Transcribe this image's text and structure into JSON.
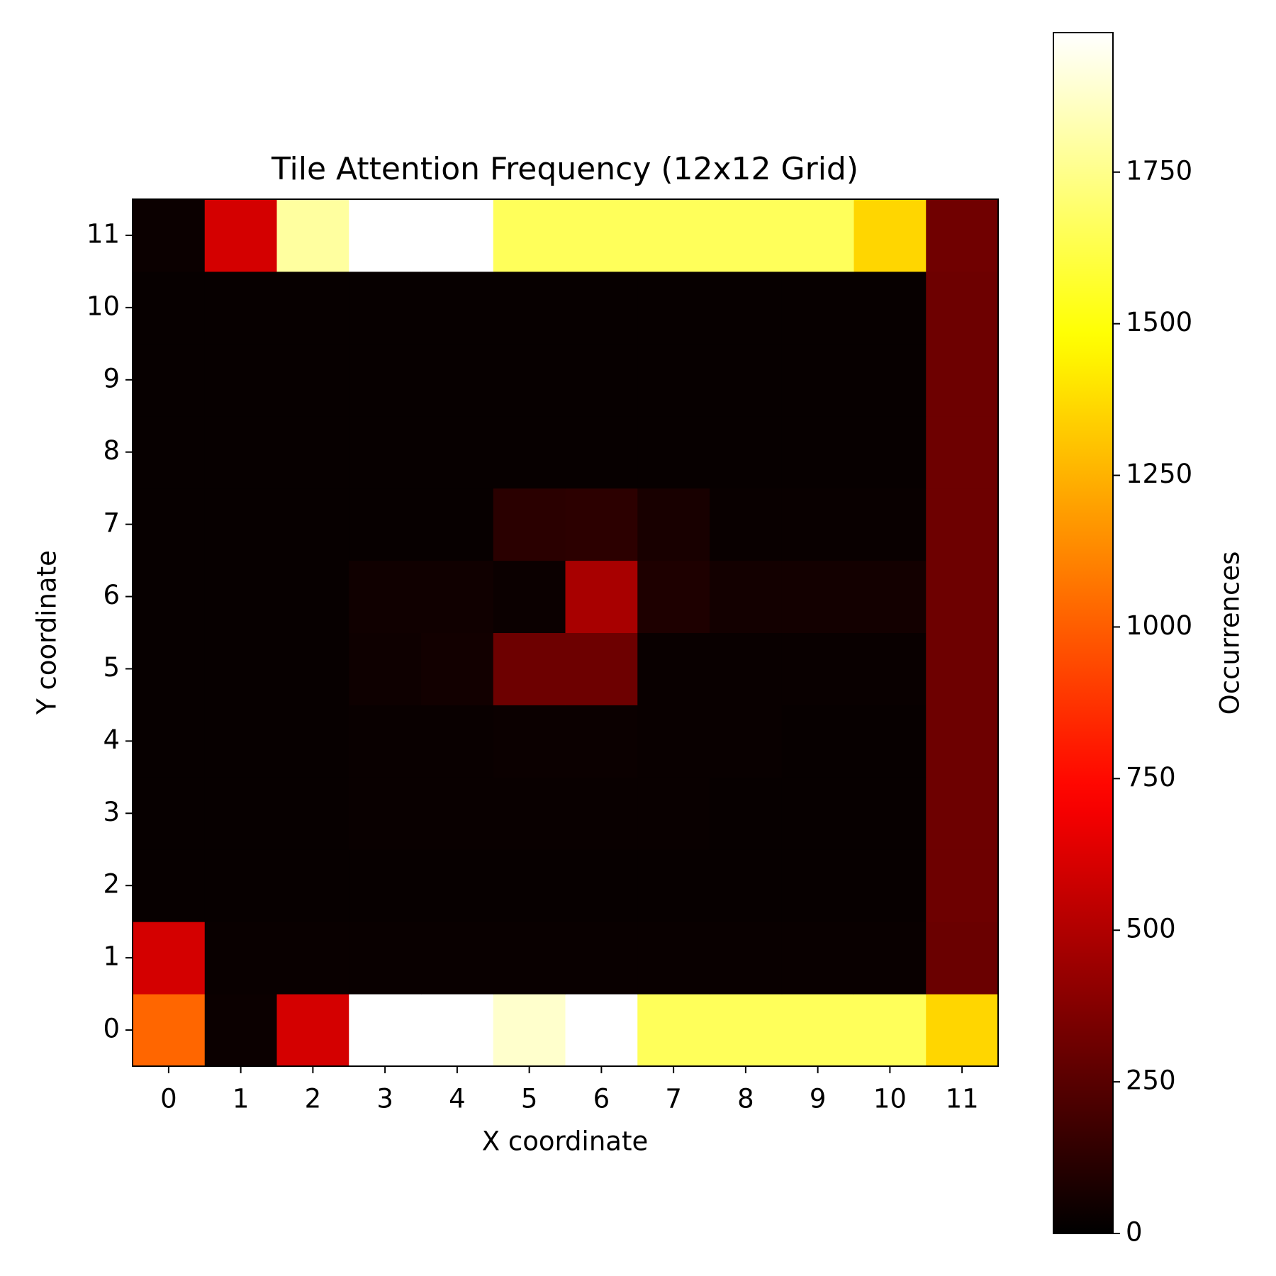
{
  "chart_data": {
    "type": "heatmap",
    "title": "Tile Attention Frequency (12x12 Grid)",
    "x_label": "X coordinate",
    "y_label": "Y coordinate",
    "colorbar_label": "Occurrences",
    "colormap": "hot",
    "xlim": [
      -0.5,
      11.5
    ],
    "ylim": [
      -0.5,
      11.5
    ],
    "xticks": [
      0,
      1,
      2,
      3,
      4,
      5,
      6,
      7,
      8,
      9,
      10,
      11
    ],
    "yticks": [
      0,
      1,
      2,
      3,
      4,
      5,
      6,
      7,
      8,
      9,
      10,
      11
    ],
    "clim": [
      0,
      1980
    ],
    "cticks": [
      0,
      250,
      500,
      750,
      1000,
      1250,
      1500,
      1750
    ],
    "values": [
      [
        1024,
        30,
        600,
        1980,
        1980,
        1880,
        1980,
        1655,
        1655,
        1655,
        1655,
        1356
      ],
      [
        600,
        25,
        25,
        25,
        25,
        25,
        25,
        25,
        25,
        25,
        25,
        300
      ],
      [
        20,
        20,
        20,
        20,
        20,
        20,
        20,
        20,
        20,
        20,
        20,
        310
      ],
      [
        20,
        20,
        20,
        25,
        25,
        25,
        25,
        25,
        20,
        20,
        20,
        310
      ],
      [
        20,
        20,
        20,
        25,
        25,
        30,
        30,
        25,
        25,
        20,
        20,
        310
      ],
      [
        20,
        20,
        20,
        40,
        50,
        310,
        310,
        25,
        25,
        25,
        25,
        310
      ],
      [
        20,
        20,
        20,
        45,
        45,
        30,
        476,
        85,
        55,
        55,
        55,
        310
      ],
      [
        20,
        20,
        20,
        20,
        20,
        119,
        125,
        68,
        25,
        25,
        25,
        310
      ],
      [
        20,
        20,
        20,
        20,
        20,
        20,
        20,
        20,
        20,
        20,
        20,
        310
      ],
      [
        20,
        20,
        20,
        20,
        20,
        20,
        20,
        20,
        20,
        20,
        20,
        310
      ],
      [
        20,
        20,
        20,
        20,
        20,
        20,
        20,
        20,
        20,
        20,
        20,
        310
      ],
      [
        30,
        600,
        1790,
        1980,
        1980,
        1655,
        1655,
        1655,
        1655,
        1655,
        1356,
        318
      ]
    ]
  }
}
